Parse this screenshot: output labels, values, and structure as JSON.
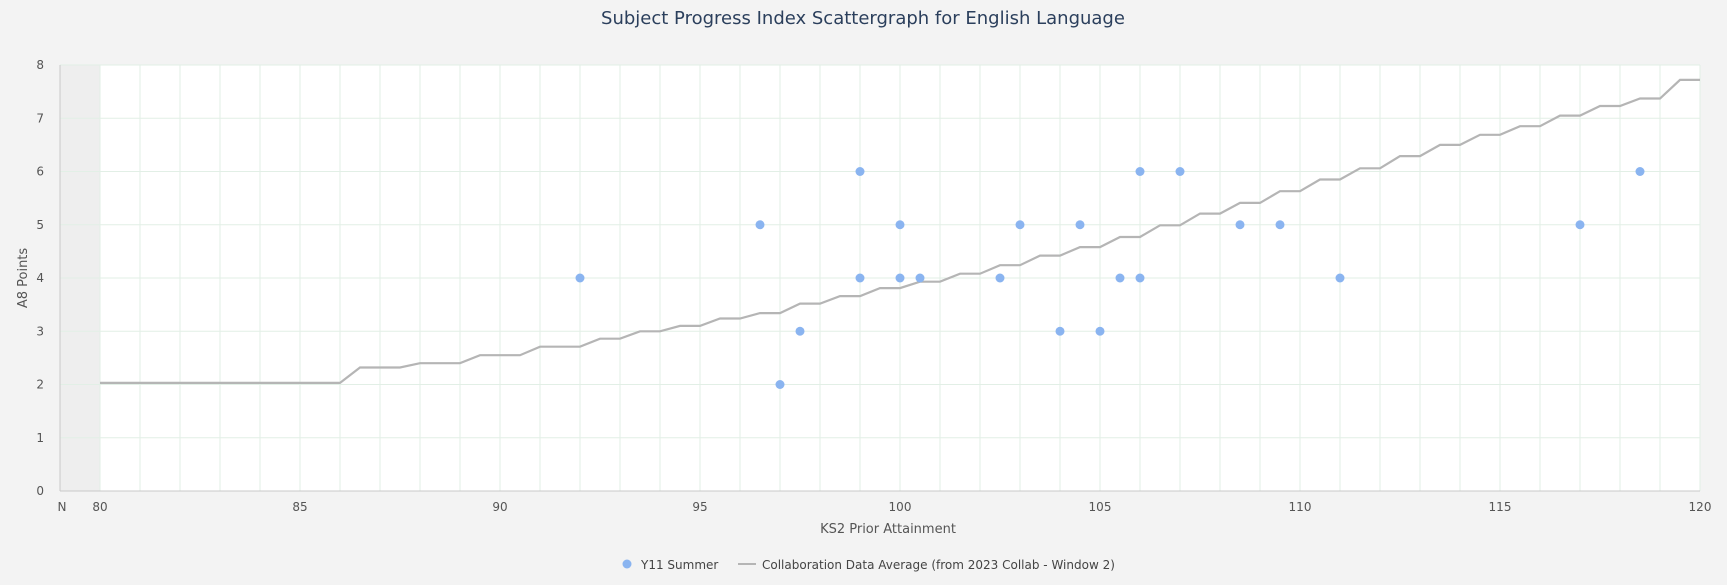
{
  "chart_data": {
    "type": "scatter",
    "title": "Subject Progress Index Scattergraph for English Language",
    "xlabel": "KS2 Prior Attainment",
    "ylabel": "A8 Points",
    "x_axis": {
      "category_tick": "N",
      "range": [
        80,
        120
      ],
      "ticks": [
        80,
        85,
        90,
        95,
        100,
        105,
        110,
        115,
        120
      ],
      "minor_step": 1
    },
    "y_axis": {
      "range": [
        0,
        8
      ],
      "ticks": [
        0,
        1,
        2,
        3,
        4,
        5,
        6,
        7,
        8
      ]
    },
    "grid": true,
    "legend_position": "bottom",
    "series": [
      {
        "name": "Y11 Summer",
        "kind": "scatter",
        "color": "#8ab4f0",
        "points": [
          [
            92,
            4
          ],
          [
            96.5,
            5
          ],
          [
            97,
            2
          ],
          [
            97.5,
            3
          ],
          [
            99,
            6
          ],
          [
            99,
            4
          ],
          [
            100,
            5
          ],
          [
            100,
            4
          ],
          [
            100.5,
            4
          ],
          [
            102.5,
            4
          ],
          [
            103,
            5
          ],
          [
            104,
            3
          ],
          [
            104.5,
            5
          ],
          [
            105,
            3
          ],
          [
            105.5,
            4
          ],
          [
            106,
            6
          ],
          [
            106,
            4
          ],
          [
            107,
            6
          ],
          [
            108.5,
            5
          ],
          [
            109.5,
            5
          ],
          [
            111,
            4
          ],
          [
            117,
            5
          ],
          [
            118.5,
            6
          ]
        ]
      },
      {
        "name": "Collaboration Data Average (from 2023 Collab - Window 2)",
        "kind": "step-line",
        "color": "#b5b5b5",
        "points": [
          [
            80,
            2.03
          ],
          [
            86,
            2.03
          ],
          [
            86.5,
            2.32
          ],
          [
            87.5,
            2.32
          ],
          [
            88,
            2.4
          ],
          [
            89,
            2.4
          ],
          [
            89.5,
            2.55
          ],
          [
            90.5,
            2.55
          ],
          [
            91,
            2.71
          ],
          [
            92,
            2.71
          ],
          [
            92.5,
            2.86
          ],
          [
            93,
            2.86
          ],
          [
            93.5,
            3.0
          ],
          [
            94,
            3.0
          ],
          [
            94.5,
            3.1
          ],
          [
            95,
            3.1
          ],
          [
            95.5,
            3.24
          ],
          [
            96,
            3.24
          ],
          [
            96.5,
            3.34
          ],
          [
            97,
            3.34
          ],
          [
            97.5,
            3.52
          ],
          [
            98,
            3.52
          ],
          [
            98.5,
            3.66
          ],
          [
            99,
            3.66
          ],
          [
            99.5,
            3.81
          ],
          [
            100,
            3.81
          ],
          [
            100.5,
            3.93
          ],
          [
            101,
            3.93
          ],
          [
            101.5,
            4.08
          ],
          [
            102,
            4.08
          ],
          [
            102.5,
            4.24
          ],
          [
            103,
            4.24
          ],
          [
            103.5,
            4.42
          ],
          [
            104,
            4.42
          ],
          [
            104.5,
            4.58
          ],
          [
            105,
            4.58
          ],
          [
            105.5,
            4.77
          ],
          [
            106,
            4.77
          ],
          [
            106.5,
            4.99
          ],
          [
            107,
            4.99
          ],
          [
            107.5,
            5.21
          ],
          [
            108,
            5.21
          ],
          [
            108.5,
            5.41
          ],
          [
            109,
            5.41
          ],
          [
            109.5,
            5.63
          ],
          [
            110,
            5.63
          ],
          [
            110.5,
            5.85
          ],
          [
            111,
            5.85
          ],
          [
            111.5,
            6.06
          ],
          [
            112,
            6.06
          ],
          [
            112.5,
            6.29
          ],
          [
            113,
            6.29
          ],
          [
            113.5,
            6.5
          ],
          [
            114,
            6.5
          ],
          [
            114.5,
            6.69
          ],
          [
            115,
            6.69
          ],
          [
            115.5,
            6.85
          ],
          [
            116,
            6.85
          ],
          [
            116.5,
            7.05
          ],
          [
            117,
            7.05
          ],
          [
            117.5,
            7.23
          ],
          [
            118,
            7.23
          ],
          [
            118.5,
            7.37
          ],
          [
            119,
            7.37
          ],
          [
            119.5,
            7.72
          ],
          [
            120,
            7.72
          ]
        ]
      }
    ]
  }
}
